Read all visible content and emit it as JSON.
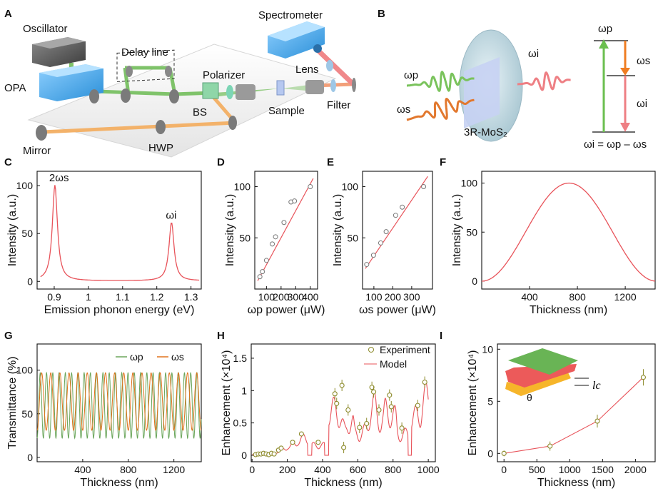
{
  "colors": {
    "curve": "#e8535a",
    "omega_p": "#6aa55a",
    "omega_s": "#e0731c",
    "marker": "#8c8a2a",
    "axis": "#111111"
  },
  "labels": {
    "A": "A",
    "B": "B",
    "C": "C",
    "D": "D",
    "E": "E",
    "F": "F",
    "G": "G",
    "H": "H",
    "I": "I"
  },
  "setup": {
    "oscillator": "Oscillator",
    "opa": "OPA",
    "delay_line": "Delay line",
    "polarizer": "Polarizer",
    "spectrometer": "Spectrometer",
    "lens": "Lens",
    "bs": "BS",
    "sample": "Sample",
    "filter": "Filter",
    "mirror": "Mirror",
    "hwp": "HWP"
  },
  "scheme": {
    "omega_p": "ωp",
    "omega_s": "ωs",
    "omega_i": "ωi",
    "sample": "3R-MoS₂",
    "equation": "ωi = ωp – ωs"
  },
  "chart_data": [
    {
      "panel": "C",
      "type": "line",
      "xlabel": "Emission phonon energy (eV)",
      "ylabel": "Intensity (a.u.)",
      "xlim": [
        0.85,
        1.33
      ],
      "ylim": [
        -8,
        115
      ],
      "xticks": [
        "0.9",
        "1",
        "1.1",
        "1.2",
        "1.3"
      ],
      "yticks": [
        "0",
        "50",
        "100"
      ],
      "peaks": [
        {
          "x": 0.902,
          "y": 100,
          "label": "2ωs"
        },
        {
          "x": 1.243,
          "y": 61,
          "label": "ωi"
        }
      ]
    },
    {
      "panel": "D",
      "type": "scatter",
      "xlabel": "ωp power (μW)",
      "ylabel": "Intensity (a.u.)",
      "xlim": [
        20,
        450
      ],
      "ylim": [
        0,
        115
      ],
      "xticks": [
        "100",
        "200",
        "300",
        "400"
      ],
      "yticks": [
        "50",
        "100"
      ],
      "x": [
        55,
        72,
        100,
        140,
        162,
        220,
        268,
        292,
        400
      ],
      "y": [
        12,
        17,
        28,
        44,
        51,
        65,
        85,
        86,
        100
      ],
      "fit": [
        [
          40,
          8
        ],
        [
          420,
          108
        ]
      ]
    },
    {
      "panel": "E",
      "type": "scatter",
      "xlabel": "ωs power (μW)",
      "ylabel": "Intensity (a.u.)",
      "xlim": [
        40,
        410
      ],
      "ylim": [
        0,
        115
      ],
      "xticks": [
        "100",
        "200",
        "300"
      ],
      "yticks": [
        "50",
        "100"
      ],
      "x": [
        62,
        98,
        136,
        165,
        215,
        250,
        363
      ],
      "y": [
        24,
        33,
        45,
        56,
        72,
        80,
        100
      ],
      "fit": [
        [
          55,
          20
        ],
        [
          385,
          110
        ]
      ]
    },
    {
      "panel": "F",
      "type": "line",
      "xlabel": "Thickness (nm)",
      "ylabel": "Intensity (a.u.)",
      "xlim": [
        0,
        1450
      ],
      "ylim": [
        -8,
        112
      ],
      "xticks": [
        "400",
        "800",
        "1200"
      ],
      "yticks": [
        "0",
        "50",
        "100"
      ],
      "peak": {
        "x": 730,
        "y": 100
      }
    },
    {
      "panel": "G",
      "type": "line",
      "xlabel": "Thickness (nm)",
      "ylabel": "Transmittance (%)",
      "xlim": [
        0,
        1440
      ],
      "ylim": [
        -5,
        130
      ],
      "xticks": [
        "400",
        "800",
        "1200"
      ],
      "yticks": [
        "0",
        "50",
        "100"
      ],
      "series": [
        {
          "name": "ωp",
          "min": 22,
          "max": 97,
          "period_nm": 55
        },
        {
          "name": "ωs",
          "min": 31,
          "max": 97,
          "period_nm": 80
        }
      ]
    },
    {
      "panel": "H",
      "type": "scatter",
      "xlabel": "Thickness (nm)",
      "ylabel": "Enhancement (×10⁴)",
      "xlim": [
        -5,
        1040
      ],
      "ylim": [
        -0.1,
        1.72
      ],
      "xticks": [
        "0",
        "200",
        "400",
        "600",
        "800",
        "1000"
      ],
      "yticks": [
        "0",
        "0.5",
        "1",
        "1.5"
      ],
      "legend": [
        "Experiment",
        "Model"
      ],
      "experiment": {
        "x": [
          20,
          35,
          50,
          65,
          80,
          95,
          110,
          125,
          150,
          165,
          230,
          280,
          375,
          470,
          480,
          510,
          520,
          545,
          610,
          650,
          680,
          690,
          720,
          780,
          790,
          850,
          940,
          980
        ],
        "y": [
          0.01,
          0.02,
          0.02,
          0.03,
          0.02,
          0.01,
          0.03,
          0.02,
          0.08,
          0.11,
          0.2,
          0.33,
          0.2,
          0.95,
          0.8,
          1.08,
          0.12,
          0.7,
          0.43,
          0.49,
          1.05,
          0.98,
          0.7,
          0.93,
          0.75,
          0.42,
          0.77,
          1.13
        ]
      }
    },
    {
      "panel": "I",
      "type": "line",
      "xlabel": "Thickness (nm)",
      "ylabel": "Enhancement (×10⁴)",
      "xlim": [
        -100,
        2300
      ],
      "ylim": [
        -0.8,
        10.5
      ],
      "xticks": [
        "0",
        "500",
        "1000",
        "1500",
        "2000"
      ],
      "yticks": [
        "0",
        "5",
        "10"
      ],
      "x": [
        0,
        700,
        1420,
        2120
      ],
      "y": [
        0,
        0.7,
        3.1,
        7.3
      ],
      "inset": {
        "angle": "θ",
        "length": "lc"
      }
    }
  ]
}
